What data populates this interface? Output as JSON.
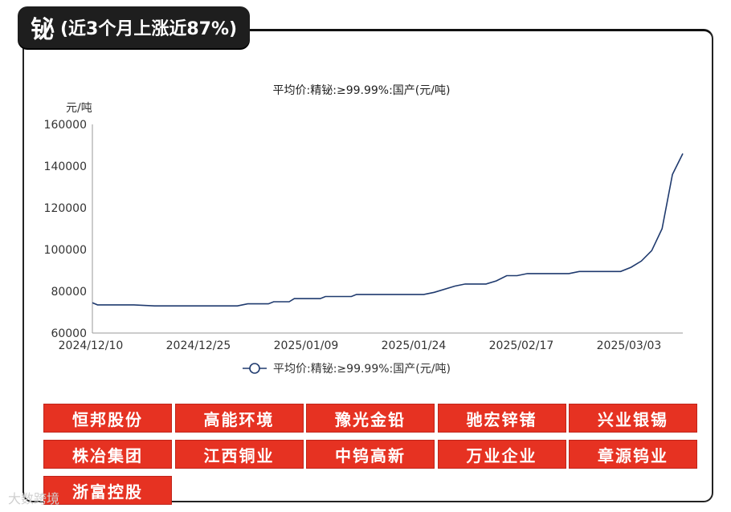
{
  "header": {
    "title": "铋",
    "subtitle": "(近3个月上涨近87%)"
  },
  "chart_data": {
    "type": "line",
    "title": "平均价:精铋:≥99.99%:国产(元/吨)",
    "ylabel": "元/吨",
    "ylim": [
      60000,
      160000
    ],
    "yticks": [
      "160000",
      "140000",
      "120000",
      "100000",
      "80000",
      "60000"
    ],
    "xticks": [
      "2024/12/10",
      "2024/12/25",
      "2025/01/09",
      "2025/01/24",
      "2025/02/17",
      "2025/03/03"
    ],
    "legend_position": "bottom",
    "grid": false,
    "series": [
      {
        "name": "平均价:精铋:≥99.99%:国产(元/吨)",
        "color": "#1f3a6e",
        "points": [
          [
            0,
            74500
          ],
          [
            0.5,
            73500
          ],
          [
            4,
            73500
          ],
          [
            6,
            73000
          ],
          [
            14,
            73000
          ],
          [
            15,
            74000
          ],
          [
            17,
            74000
          ],
          [
            17.5,
            75000
          ],
          [
            19,
            75000
          ],
          [
            19.5,
            76500
          ],
          [
            22,
            76500
          ],
          [
            22.5,
            77500
          ],
          [
            25,
            77500
          ],
          [
            25.5,
            78500
          ],
          [
            32,
            78500
          ],
          [
            33,
            79500
          ],
          [
            35,
            82500
          ],
          [
            36,
            83500
          ],
          [
            38,
            83500
          ],
          [
            39,
            85000
          ],
          [
            40,
            87500
          ],
          [
            41,
            87500
          ],
          [
            42,
            88500
          ],
          [
            46,
            88500
          ],
          [
            47,
            89500
          ],
          [
            51,
            89500
          ],
          [
            52,
            91500
          ],
          [
            53,
            94500
          ],
          [
            54,
            99500
          ],
          [
            55,
            110000
          ],
          [
            56,
            136000
          ],
          [
            57,
            146000
          ]
        ]
      }
    ]
  },
  "companies": [
    "恒邦股份",
    "高能环境",
    "豫光金铅",
    "驰宏锌锗",
    "兴业银锡",
    "株冶集团",
    "江西铜业",
    "中钨高新",
    "万业企业",
    "章源钨业",
    "浙富控股"
  ],
  "watermark": "大数跨境"
}
